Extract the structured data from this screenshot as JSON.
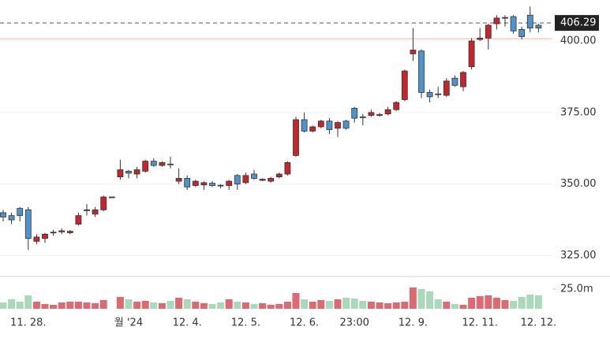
{
  "chart_data": {
    "type": "candlestick",
    "categories": [
      null,
      null,
      null,
      "11. 28.",
      null,
      null,
      null,
      null,
      null,
      null,
      null,
      null,
      null,
      null,
      null,
      "월 '24",
      null,
      null,
      null,
      null,
      null,
      null,
      "12. 4.",
      null,
      null,
      null,
      null,
      null,
      null,
      "12. 5.",
      null,
      null,
      null,
      null,
      null,
      null,
      "12. 6.",
      null,
      null,
      null,
      null,
      null,
      "23:00",
      null,
      null,
      null,
      null,
      null,
      null,
      "12. 9.",
      null,
      null,
      null,
      null,
      null,
      null,
      null,
      "12. 11.",
      null,
      null,
      null,
      null,
      null,
      null,
      "12. 12."
    ],
    "open": [
      340,
      339,
      341.5,
      341,
      330,
      331,
      333,
      333.3,
      333,
      336,
      340.8,
      339.5,
      341,
      345.5,
      352.5,
      354.5,
      353.5,
      354.5,
      358,
      356.5,
      357,
      351,
      352,
      349.5,
      349.7,
      350.3,
      349.6,
      349.5,
      353,
      350.5,
      353.5,
      351.3,
      351,
      352.5,
      353.5,
      360,
      372.5,
      368.5,
      370,
      372,
      369.5,
      372,
      376.5,
      373.5,
      374,
      374,
      374.5,
      376,
      379.5,
      395.5,
      396.5,
      382,
      381.5,
      381,
      387,
      384,
      391,
      400.5,
      401,
      406,
      408,
      408.5,
      404,
      409,
      405.5
    ],
    "high": [
      341,
      340,
      342,
      342,
      332.5,
      333,
      334,
      334.5,
      334,
      340,
      343,
      342,
      346,
      345.5,
      358.5,
      355,
      356,
      358.5,
      359,
      358,
      359.5,
      355.5,
      353,
      351.5,
      351,
      351,
      350,
      351.5,
      353.5,
      354,
      355,
      352,
      352.5,
      354,
      358,
      373.5,
      375,
      370.5,
      372.5,
      373,
      372,
      372.5,
      377,
      374.5,
      376,
      374.8,
      377,
      379,
      390,
      404.5,
      397,
      383,
      384,
      387,
      388,
      389.5,
      401,
      404.5,
      406,
      409,
      409,
      409,
      405,
      412,
      406
    ],
    "low": [
      337,
      336,
      337,
      327,
      329,
      329.5,
      332,
      332.5,
      332.5,
      335.5,
      339,
      338.5,
      340.5,
      345.5,
      351.5,
      352,
      352,
      354,
      356,
      356,
      355.5,
      350,
      348,
      349,
      348,
      349,
      348.5,
      348,
      348,
      350,
      351.5,
      351,
      350.5,
      352,
      353,
      359.5,
      368,
      368,
      369.5,
      367.5,
      366.5,
      369,
      371.5,
      370.5,
      373.5,
      373.5,
      374,
      375.5,
      379,
      393,
      380,
      378.5,
      380,
      380.5,
      384,
      382.5,
      390,
      400,
      397,
      404,
      405,
      402.5,
      400.5,
      403,
      403
    ],
    "close": [
      338.5,
      337.5,
      339,
      331,
      331.5,
      332.5,
      333.2,
      333.7,
      333.5,
      339,
      341,
      341,
      345.5,
      345.5,
      355,
      353.8,
      355,
      358,
      356.5,
      357.5,
      356.8,
      352,
      349,
      351,
      350.5,
      349.5,
      349.4,
      351,
      350,
      353,
      352,
      351.7,
      352,
      353.5,
      357.5,
      372.5,
      368.5,
      370,
      372,
      369,
      371.5,
      369.5,
      373,
      373.2,
      375,
      374.3,
      376,
      378.5,
      389.5,
      396.8,
      382,
      380.5,
      381.3,
      386,
      384.5,
      389,
      400,
      401,
      405.5,
      408,
      408.2,
      403.5,
      401.5,
      404.5,
      404.5
    ],
    "volume": [
      8,
      12,
      9,
      17,
      9,
      6,
      5,
      8,
      9,
      9,
      8,
      7,
      11,
      0,
      15,
      12,
      9,
      10,
      8,
      7,
      10,
      14,
      12,
      9,
      7,
      6,
      8,
      12,
      9,
      8,
      6,
      7,
      5,
      6,
      9,
      20,
      12,
      9,
      11,
      10,
      12,
      14,
      13,
      10,
      9,
      8,
      7,
      8,
      9,
      27,
      25,
      22,
      12,
      9,
      6,
      5,
      14,
      16,
      17,
      14,
      11,
      10,
      15,
      18,
      17
    ],
    "up_color": "#c4262c",
    "down_color": "#4e93cc",
    "volume_up_color": "#dd6a70",
    "volume_down_color": "#a9d9ba",
    "ylim": [
      318,
      414.3
    ],
    "yticks": [
      {
        "value": 325,
        "label": "325.00"
      },
      {
        "value": 350,
        "label": "350.00"
      },
      {
        "value": 375,
        "label": "375.00"
      },
      {
        "value": 400,
        "label": "400.00"
      }
    ],
    "volume_lim": [
      0,
      40
    ],
    "volume_ticks": [
      {
        "value": 25,
        "label": "25.0m"
      }
    ],
    "last_price": 406.29,
    "price_line": 400.8,
    "grid": true
  }
}
